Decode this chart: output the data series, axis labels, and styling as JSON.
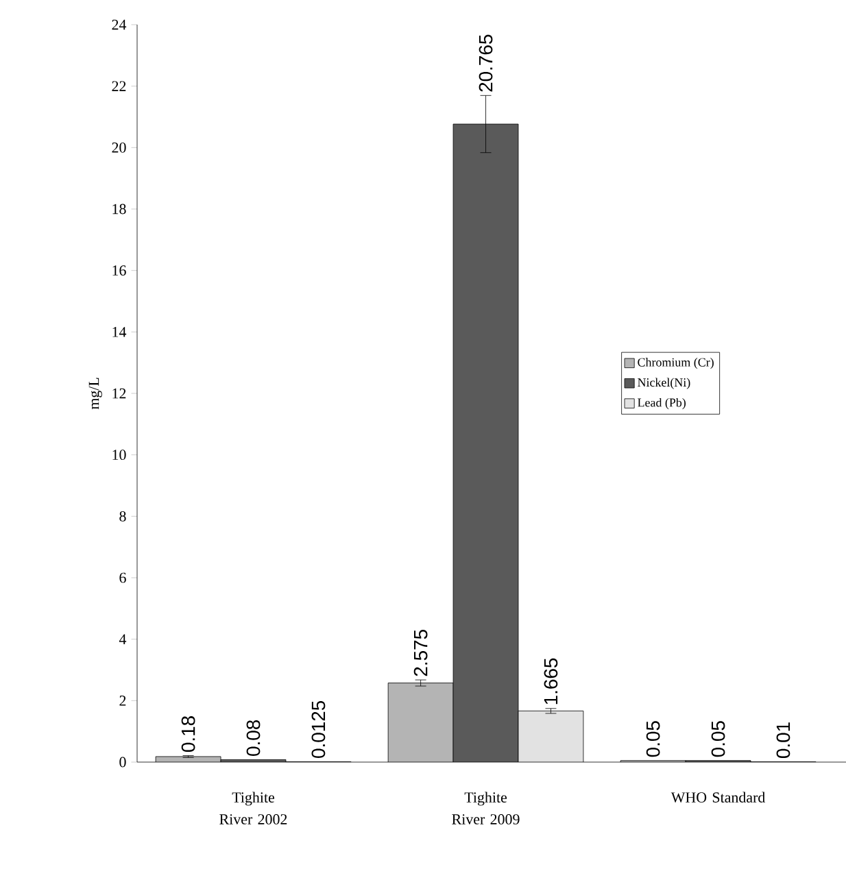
{
  "chart_data": {
    "type": "bar",
    "ylabel": "mg/L",
    "categories": [
      "Tighite River 2002",
      "Tighite River 2009",
      "WHO Standard"
    ],
    "series": [
      {
        "name": "Chromium (Cr)",
        "color": "#b4b4b4",
        "values": [
          0.18,
          2.575,
          0.05
        ],
        "value_labels": [
          "0.18",
          "2.575",
          "0.05"
        ],
        "errors": [
          0.03,
          0.1,
          null
        ]
      },
      {
        "name": "Nickel(Ni)",
        "color": "#5a5a5a",
        "values": [
          0.08,
          20.765,
          0.05
        ],
        "value_labels": [
          "0.08",
          "20.765",
          "0.05"
        ],
        "errors": [
          null,
          0.93,
          null
        ]
      },
      {
        "name": "Lead (Pb)",
        "color": "#e2e2e2",
        "values": [
          0.0125,
          1.665,
          0.01
        ],
        "value_labels": [
          "0.0125",
          "1.665",
          "0.01"
        ],
        "errors": [
          null,
          0.08,
          null
        ]
      }
    ],
    "ylim": [
      0,
      24
    ],
    "yticks": [
      0,
      2,
      4,
      6,
      8,
      10,
      12,
      14,
      16,
      18,
      20,
      22,
      24
    ],
    "legend": "right",
    "grid": false,
    "data_labels": true
  }
}
